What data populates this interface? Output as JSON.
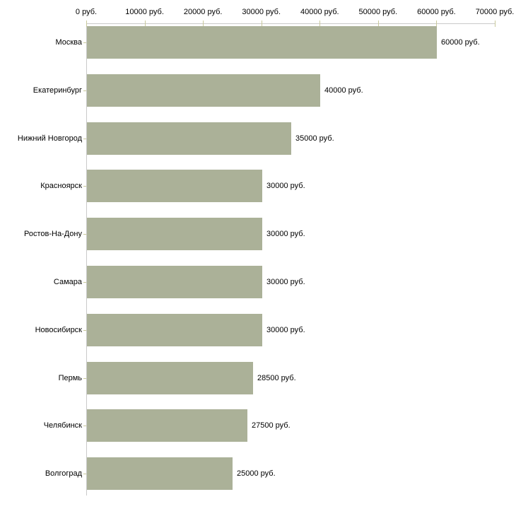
{
  "chart_data": {
    "type": "bar",
    "orientation": "horizontal",
    "title": "",
    "xlabel": "",
    "ylabel": "",
    "unit": "руб.",
    "grid": false,
    "legend": null,
    "xlim": [
      0,
      70000
    ],
    "categories": [
      "Москва",
      "Екатеринбург",
      "Нижний Новгород",
      "Красноярск",
      "Ростов-На-Дону",
      "Самара",
      "Новосибирск",
      "Пермь",
      "Челябинск",
      "Волгоград"
    ],
    "values": [
      60000,
      40000,
      35000,
      30000,
      30000,
      30000,
      30000,
      28500,
      27500,
      25000
    ],
    "value_labels": [
      "60000 руб.",
      "40000 руб.",
      "35000 руб.",
      "30000 руб.",
      "30000 руб.",
      "30000 руб.",
      "30000 руб.",
      "28500 руб.",
      "27500 руб.",
      "25000 руб."
    ],
    "x_ticks": [
      {
        "value": 0,
        "label": "0 руб."
      },
      {
        "value": 10000,
        "label": "10000 руб."
      },
      {
        "value": 20000,
        "label": "20000 руб."
      },
      {
        "value": 30000,
        "label": "30000 руб."
      },
      {
        "value": 40000,
        "label": "40000 руб."
      },
      {
        "value": 50000,
        "label": "50000 руб."
      },
      {
        "value": 60000,
        "label": "60000 руб."
      },
      {
        "value": 70000,
        "label": "70000 руб."
      }
    ],
    "colors": {
      "bar": "#abb198",
      "axis_line": "#c9c9c9",
      "tick_mark": "#c9c99c",
      "text": "#000000",
      "background": "#ffffff"
    }
  }
}
